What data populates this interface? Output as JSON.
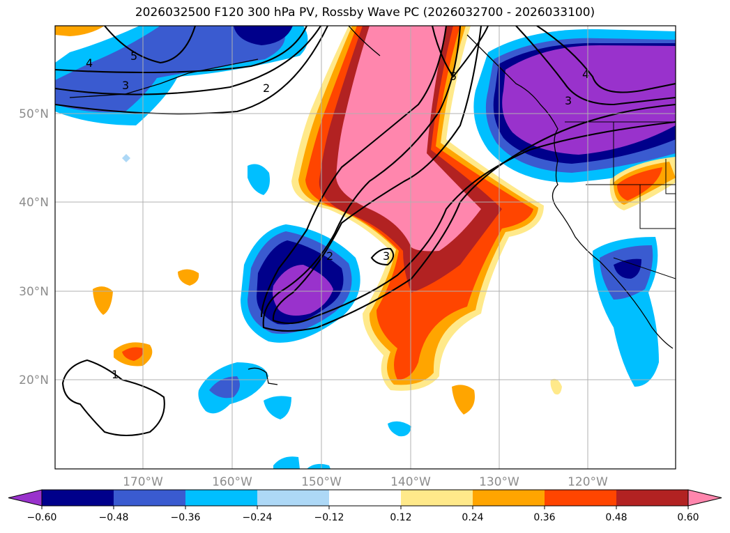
{
  "chart_data": {
    "type": "heatmap",
    "title": "2026032500 F120 300 hPa PV, Rossby Wave PC (2026032700 - 2026033100)",
    "xlabel": "",
    "ylabel": "",
    "xlim": [
      -180,
      -110
    ],
    "ylim": [
      10,
      60
    ],
    "lon_ticks": [
      -170,
      -160,
      -150,
      -140,
      -130,
      -120
    ],
    "lon_tick_labels": [
      "170°W",
      "160°W",
      "150°W",
      "140°W",
      "130°W",
      "120°W"
    ],
    "lat_ticks": [
      20,
      30,
      40,
      50
    ],
    "lat_tick_labels": [
      "20°N",
      "30°N",
      "40°N",
      "50°N"
    ],
    "grid": true,
    "colorbar": {
      "levels": [
        -0.6,
        -0.48,
        -0.36,
        -0.24,
        -0.12,
        0.12,
        0.24,
        0.36,
        0.48,
        0.6
      ],
      "tick_labels": [
        "−0.60",
        "−0.48",
        "−0.36",
        "−0.24",
        "−0.12",
        "0.12",
        "0.24",
        "0.36",
        "0.48",
        "0.60"
      ],
      "colors": [
        "#9932cc",
        "#00008b",
        "#3a5bd0",
        "#00bfff",
        "#add8f6",
        "#ffffff",
        "#ffe98a",
        "#ffa500",
        "#ff4500",
        "#b22222",
        "#ff86ad"
      ],
      "extend": "both"
    },
    "pv_contour_labels": [
      "1",
      "2",
      "2",
      "3",
      "3",
      "3",
      "4",
      "4",
      "5",
      "5"
    ]
  }
}
